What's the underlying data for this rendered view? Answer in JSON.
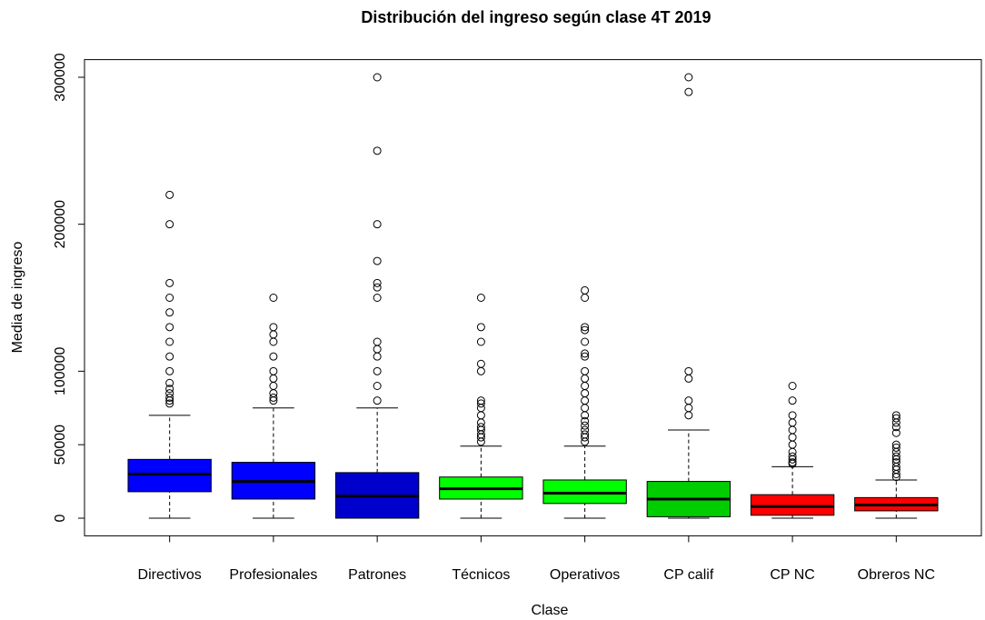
{
  "chart_data": {
    "type": "boxplot",
    "title": "Distribución del ingreso según clase 4T 2019",
    "x_label": "Clase",
    "y_label": "Media de ingreso",
    "categories": [
      "Directivos",
      "Profesionales",
      "Patrones",
      "Técnicos",
      "Operativos",
      "CP calif",
      "CP NC",
      "Obreros NC"
    ],
    "colors": [
      "#0000ff",
      "#0000ff",
      "#0000cd",
      "#00ff00",
      "#00ff00",
      "#00cd00",
      "#ff0000",
      "#ff0000"
    ],
    "whislo": [
      0,
      0,
      0,
      0,
      0,
      0,
      0,
      0
    ],
    "q1": [
      18000,
      13000,
      0,
      13000,
      10000,
      1000,
      2000,
      5000
    ],
    "med": [
      30000,
      25000,
      15000,
      20000,
      17000,
      13000,
      8000,
      9000
    ],
    "q3": [
      40000,
      38000,
      31000,
      28000,
      26000,
      25000,
      16000,
      14000
    ],
    "whishi": [
      70000,
      75000,
      75000,
      49000,
      49000,
      60000,
      35000,
      26000
    ],
    "outliers": [
      [
        220000,
        200000,
        160000,
        150000,
        140000,
        130000,
        120000,
        110000,
        100000,
        92000,
        88000,
        85000,
        82000,
        80000,
        78000
      ],
      [
        150000,
        130000,
        125000,
        120000,
        110000,
        100000,
        95000,
        90000,
        85000,
        82000,
        80000
      ],
      [
        300000,
        250000,
        200000,
        175000,
        160000,
        157000,
        150000,
        120000,
        115000,
        110000,
        100000,
        90000,
        80000
      ],
      [
        150000,
        130000,
        120000,
        105000,
        100000,
        80000,
        78000,
        75000,
        70000,
        65000,
        62000,
        60000,
        57000,
        55000,
        52000
      ],
      [
        155000,
        150000,
        130000,
        128000,
        120000,
        112000,
        110000,
        100000,
        95000,
        90000,
        85000,
        80000,
        75000,
        70000,
        66000,
        63000,
        60000,
        57000,
        55000,
        52000
      ],
      [
        300000,
        290000,
        100000,
        95000,
        80000,
        75000,
        70000
      ],
      [
        90000,
        80000,
        70000,
        65000,
        60000,
        55000,
        50000,
        45000,
        42000,
        40000,
        38000,
        37000
      ],
      [
        70000,
        68000,
        65000,
        62000,
        58000,
        50000,
        48000,
        45000,
        42000,
        40000,
        38000,
        35000,
        33000,
        30000,
        28000
      ]
    ],
    "ylim": [
      -12000,
      312000
    ],
    "yticks": [
      0,
      50000,
      100000,
      200000,
      300000
    ]
  }
}
